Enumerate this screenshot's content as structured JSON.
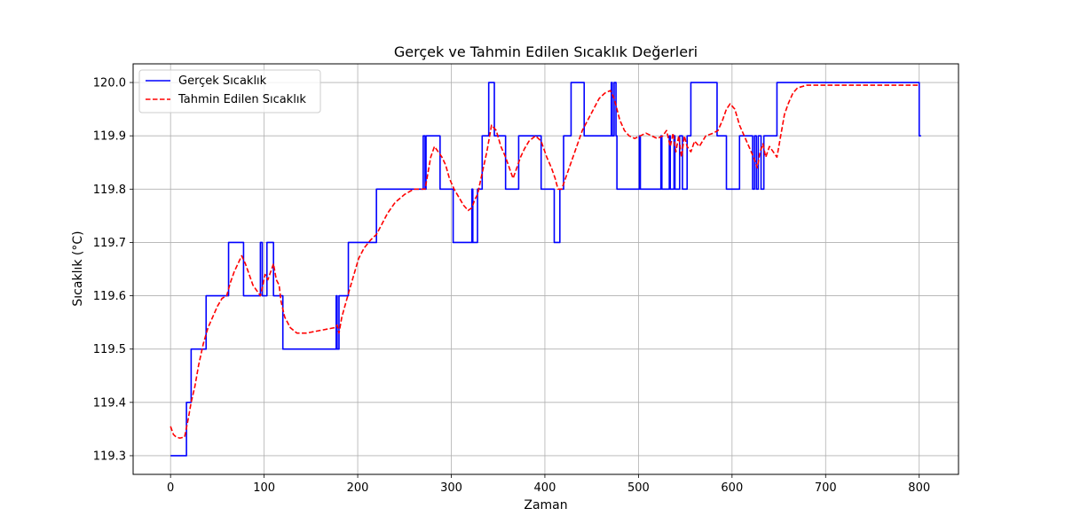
{
  "chart_data": {
    "type": "line",
    "title": "Gerçek ve Tahmin Edilen Sıcaklık Değerleri",
    "xlabel": "Zaman",
    "ylabel": "Sıcaklık (°C)",
    "xlim": [
      -40,
      842
    ],
    "ylim": [
      119.265,
      120.035
    ],
    "xticks": [
      0,
      100,
      200,
      300,
      400,
      500,
      600,
      700,
      800
    ],
    "yticks": [
      119.3,
      119.4,
      119.5,
      119.6,
      119.7,
      119.8,
      119.9,
      120.0
    ],
    "ytick_labels": [
      "119.3",
      "119.4",
      "119.5",
      "119.6",
      "119.7",
      "119.8",
      "119.9",
      "120.0"
    ],
    "grid": true,
    "legend_position": "top-left",
    "series": [
      {
        "name": "Gerçek Sıcaklık",
        "color": "#0000ff",
        "style": "solid",
        "x": [
          0,
          17,
          17,
          22,
          22,
          38,
          38,
          62,
          62,
          78,
          78,
          96,
          96,
          98,
          98,
          103,
          103,
          110,
          110,
          120,
          120,
          177,
          177,
          178,
          178,
          180,
          180,
          182,
          182,
          190,
          190,
          193,
          193,
          220,
          220,
          270,
          270,
          272,
          272,
          273,
          273,
          288,
          288,
          302,
          302,
          322,
          322,
          323,
          323,
          328,
          328,
          333,
          333,
          340,
          340,
          346,
          346,
          358,
          358,
          372,
          372,
          396,
          396,
          410,
          410,
          416,
          416,
          420,
          420,
          428,
          428,
          442,
          442,
          471,
          471,
          472,
          472,
          474,
          474,
          476,
          476,
          477,
          477,
          501,
          501,
          502,
          502,
          524,
          524,
          525,
          525,
          533,
          533,
          534,
          534,
          538,
          538,
          539,
          539,
          544,
          544,
          547,
          547,
          552,
          552,
          556,
          556,
          584,
          584,
          594,
          594,
          608,
          608,
          622,
          622,
          624,
          624,
          626,
          626,
          628,
          628,
          631,
          631,
          634,
          634,
          648,
          648,
          650,
          650,
          652,
          652,
          800,
          800,
          802
        ],
        "y": [
          119.3,
          119.3,
          119.4,
          119.4,
          119.5,
          119.5,
          119.6,
          119.6,
          119.7,
          119.7,
          119.6,
          119.6,
          119.7,
          119.7,
          119.6,
          119.6,
          119.7,
          119.7,
          119.6,
          119.6,
          119.5,
          119.5,
          119.6,
          119.6,
          119.5,
          119.5,
          119.6,
          119.6,
          119.6,
          119.6,
          119.7,
          119.7,
          119.7,
          119.7,
          119.8,
          119.8,
          119.9,
          119.9,
          119.8,
          119.8,
          119.9,
          119.9,
          119.8,
          119.8,
          119.7,
          119.7,
          119.8,
          119.8,
          119.7,
          119.7,
          119.8,
          119.8,
          119.9,
          119.9,
          120.0,
          120.0,
          119.9,
          119.9,
          119.8,
          119.8,
          119.9,
          119.9,
          119.8,
          119.8,
          119.7,
          119.7,
          119.8,
          119.8,
          119.9,
          119.9,
          120.0,
          120.0,
          119.9,
          119.9,
          120.0,
          120.0,
          119.9,
          119.9,
          120.0,
          120.0,
          119.9,
          119.9,
          119.8,
          119.8,
          119.9,
          119.9,
          119.8,
          119.8,
          119.9,
          119.9,
          119.8,
          119.8,
          119.9,
          119.9,
          119.8,
          119.8,
          119.9,
          119.9,
          119.8,
          119.8,
          119.9,
          119.9,
          119.8,
          119.8,
          119.9,
          119.9,
          120.0,
          120.0,
          119.9,
          119.9,
          119.8,
          119.8,
          119.9,
          119.9,
          119.8,
          119.8,
          119.9,
          119.9,
          119.8,
          119.8,
          119.9,
          119.9,
          119.8,
          119.8,
          119.9,
          119.9,
          120.0,
          120.0,
          120.0,
          120.0,
          120.0,
          120.0,
          119.9,
          119.9
        ]
      },
      {
        "name": "Tahmin Edilen Sıcaklık",
        "color": "#ff0000",
        "style": "dashed",
        "x": [
          0,
          3,
          6,
          10,
          15,
          19,
          22,
          26,
          30,
          35,
          40,
          45,
          50,
          55,
          60,
          64,
          68,
          72,
          76,
          80,
          84,
          88,
          92,
          96,
          98,
          101,
          104,
          107,
          110,
          113,
          116,
          118,
          122,
          128,
          135,
          145,
          160,
          175,
          178,
          180,
          183,
          187,
          191,
          196,
          201,
          207,
          214,
          220,
          226,
          232,
          240,
          250,
          260,
          268,
          272,
          275,
          278,
          282,
          286,
          290,
          294,
          298,
          303,
          308,
          313,
          318,
          322,
          325,
          328,
          333,
          338,
          343,
          348,
          353,
          358,
          362,
          366,
          370,
          374,
          378,
          383,
          390,
          396,
          402,
          407,
          411,
          414,
          418,
          422,
          428,
          434,
          440,
          446,
          452,
          458,
          464,
          470,
          474,
          477,
          480,
          485,
          490,
          496,
          502,
          508,
          514,
          520,
          526,
          530,
          534,
          537,
          540,
          543,
          546,
          549,
          552,
          556,
          560,
          565,
          572,
          580,
          585,
          590,
          594,
          598,
          603,
          608,
          613,
          618,
          623,
          627,
          630,
          633,
          636,
          640,
          644,
          648,
          652,
          656,
          660,
          665,
          670,
          680,
          700,
          750,
          800
        ],
        "y": [
          119.355,
          119.34,
          119.335,
          119.333,
          119.335,
          119.37,
          119.4,
          119.43,
          119.47,
          119.51,
          119.54,
          119.56,
          119.58,
          119.595,
          119.6,
          119.625,
          119.645,
          119.66,
          119.675,
          119.66,
          119.64,
          119.62,
          119.61,
          119.6,
          119.615,
          119.64,
          119.63,
          119.645,
          119.66,
          119.63,
          119.62,
          119.59,
          119.56,
          119.54,
          119.53,
          119.53,
          119.535,
          119.54,
          119.545,
          119.53,
          119.56,
          119.585,
          119.61,
          119.64,
          119.67,
          119.69,
          119.705,
          119.715,
          119.735,
          119.755,
          119.775,
          119.79,
          119.8,
          119.8,
          119.8,
          119.83,
          119.86,
          119.88,
          119.87,
          119.86,
          119.845,
          119.82,
          119.8,
          119.785,
          119.77,
          119.76,
          119.765,
          119.78,
          119.79,
          119.83,
          119.87,
          119.92,
          119.91,
          119.88,
          119.86,
          119.84,
          119.82,
          119.84,
          119.86,
          119.875,
          119.89,
          119.9,
          119.89,
          119.86,
          119.84,
          119.82,
          119.8,
          119.8,
          119.82,
          119.85,
          119.88,
          119.91,
          119.93,
          119.95,
          119.97,
          119.98,
          119.985,
          119.97,
          119.95,
          119.93,
          119.91,
          119.9,
          119.895,
          119.9,
          119.905,
          119.9,
          119.895,
          119.9,
          119.91,
          119.88,
          119.905,
          119.87,
          119.9,
          119.86,
          119.9,
          119.88,
          119.87,
          119.89,
          119.88,
          119.9,
          119.905,
          119.91,
          119.93,
          119.95,
          119.96,
          119.95,
          119.92,
          119.9,
          119.88,
          119.86,
          119.84,
          119.87,
          119.885,
          119.86,
          119.88,
          119.87,
          119.86,
          119.9,
          119.94,
          119.96,
          119.98,
          119.99,
          119.995,
          119.995,
          119.995,
          119.995
        ]
      }
    ]
  }
}
